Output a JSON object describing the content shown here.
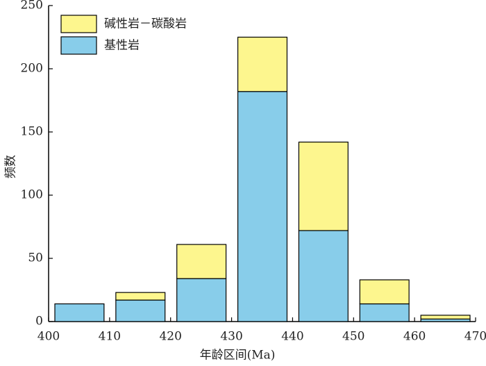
{
  "chart_data": {
    "type": "histogram",
    "xlabel": "年龄区间(Ma)",
    "ylabel": "频数",
    "bins": [
      400,
      410,
      420,
      430,
      440,
      450,
      460,
      470
    ],
    "series": [
      {
        "name": "碱性岩－碳酸岩",
        "color": "#fdf68e",
        "values": [
          0,
          6,
          27,
          43,
          70,
          19,
          3
        ]
      },
      {
        "name": "基性岩",
        "color": "#88cdea",
        "values": [
          14,
          17,
          34,
          182,
          72,
          14,
          2
        ]
      }
    ],
    "stacked": true,
    "xlim": [
      400,
      470
    ],
    "xticks": [
      400,
      410,
      420,
      430,
      440,
      450,
      460,
      470
    ],
    "ylim": [
      0,
      250
    ],
    "yticks": [
      0,
      50,
      100,
      150,
      200,
      250
    ],
    "grid": false,
    "legend": "upper left"
  }
}
